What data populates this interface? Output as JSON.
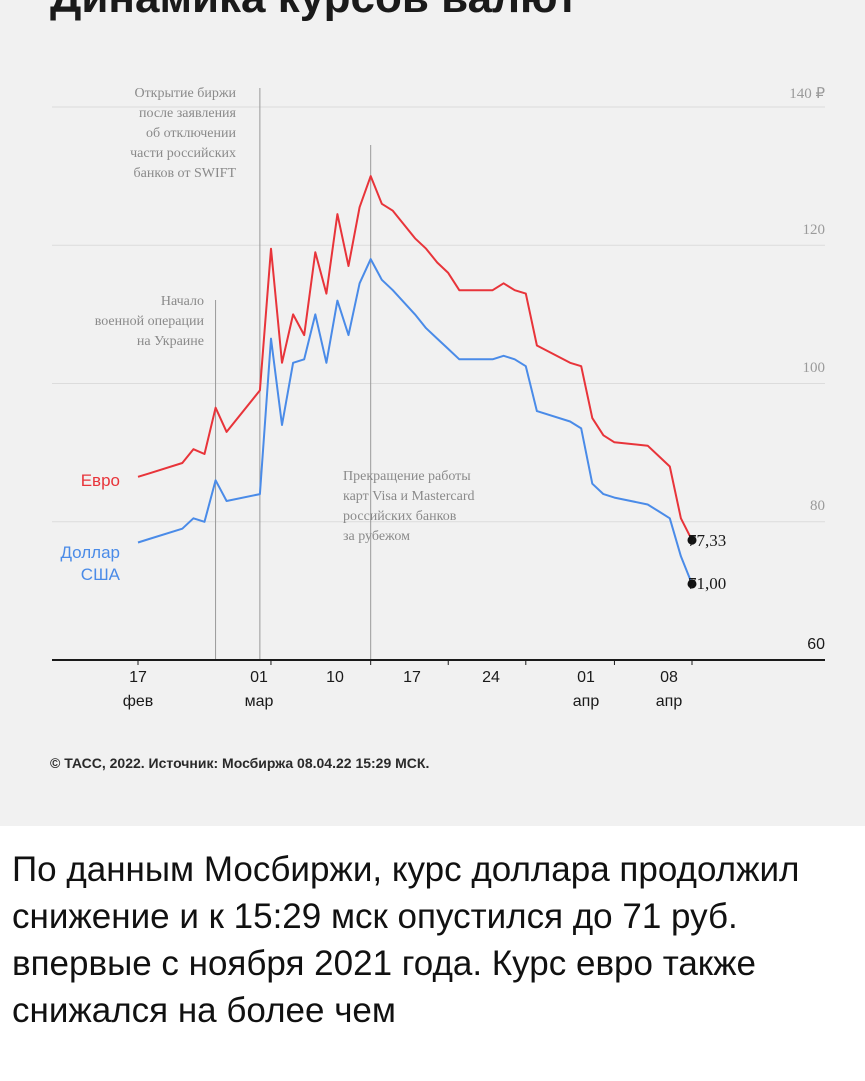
{
  "chart_data": {
    "type": "line",
    "title": "Динамика курсов валют",
    "currency_note": "₽",
    "y_ticks": [
      {
        "value": 140,
        "label": "140 ₽"
      },
      {
        "value": 120,
        "label": "120"
      },
      {
        "value": 100,
        "label": "100"
      },
      {
        "value": 80,
        "label": "80"
      },
      {
        "value": 60,
        "label": "60"
      }
    ],
    "ylim": [
      60,
      140
    ],
    "x_ticks": [
      {
        "date": "2022-02-17",
        "label": "17\nфев"
      },
      {
        "date": "2022-03-01",
        "label": "01\nмар"
      },
      {
        "date": "2022-03-10",
        "label": "10"
      },
      {
        "date": "2022-03-17",
        "label": "17"
      },
      {
        "date": "2022-03-24",
        "label": "24"
      },
      {
        "date": "2022-04-01",
        "label": "01\nапр"
      },
      {
        "date": "2022-04-08",
        "label": "08\nапр"
      }
    ],
    "series": [
      {
        "name": "Евро",
        "color": "#e8343a",
        "end_label": "77,33",
        "points": [
          [
            "2022-02-17",
            86.5
          ],
          [
            "2022-02-18",
            87.0
          ],
          [
            "2022-02-21",
            88.5
          ],
          [
            "2022-02-22",
            90.5
          ],
          [
            "2022-02-23",
            89.8
          ],
          [
            "2022-02-24",
            96.5
          ],
          [
            "2022-02-25",
            93.0
          ],
          [
            "2022-02-28",
            99.0
          ],
          [
            "2022-03-01",
            119.5
          ],
          [
            "2022-03-02",
            103.0
          ],
          [
            "2022-03-03",
            110.0
          ],
          [
            "2022-03-04",
            107.0
          ],
          [
            "2022-03-05",
            119.0
          ],
          [
            "2022-03-06",
            113.0
          ],
          [
            "2022-03-07",
            124.5
          ],
          [
            "2022-03-08",
            117.0
          ],
          [
            "2022-03-09",
            125.5
          ],
          [
            "2022-03-10",
            130.0
          ],
          [
            "2022-03-11",
            126.0
          ],
          [
            "2022-03-12",
            125.0
          ],
          [
            "2022-03-14",
            121.0
          ],
          [
            "2022-03-15",
            119.5
          ],
          [
            "2022-03-16",
            117.5
          ],
          [
            "2022-03-17",
            116.0
          ],
          [
            "2022-03-18",
            113.5
          ],
          [
            "2022-03-21",
            113.5
          ],
          [
            "2022-03-22",
            114.5
          ],
          [
            "2022-03-23",
            113.5
          ],
          [
            "2022-03-24",
            113.0
          ],
          [
            "2022-03-25",
            105.5
          ],
          [
            "2022-03-28",
            103.0
          ],
          [
            "2022-03-29",
            102.5
          ],
          [
            "2022-03-30",
            95.0
          ],
          [
            "2022-03-31",
            92.5
          ],
          [
            "2022-04-01",
            91.5
          ],
          [
            "2022-04-04",
            91.0
          ],
          [
            "2022-04-05",
            89.5
          ],
          [
            "2022-04-06",
            88.0
          ],
          [
            "2022-04-07",
            80.5
          ],
          [
            "2022-04-08",
            77.33
          ]
        ]
      },
      {
        "name": "Доллар\nСША",
        "color": "#4a8be8",
        "end_label": "71,00",
        "points": [
          [
            "2022-02-17",
            77.0
          ],
          [
            "2022-02-18",
            77.5
          ],
          [
            "2022-02-21",
            79.0
          ],
          [
            "2022-02-22",
            80.5
          ],
          [
            "2022-02-23",
            80.0
          ],
          [
            "2022-02-24",
            86.0
          ],
          [
            "2022-02-25",
            83.0
          ],
          [
            "2022-02-28",
            84.0
          ],
          [
            "2022-03-01",
            106.5
          ],
          [
            "2022-03-02",
            94.0
          ],
          [
            "2022-03-03",
            103.0
          ],
          [
            "2022-03-04",
            103.5
          ],
          [
            "2022-03-05",
            110.0
          ],
          [
            "2022-03-06",
            103.0
          ],
          [
            "2022-03-07",
            112.0
          ],
          [
            "2022-03-08",
            107.0
          ],
          [
            "2022-03-09",
            114.5
          ],
          [
            "2022-03-10",
            118.0
          ],
          [
            "2022-03-11",
            115.0
          ],
          [
            "2022-03-12",
            113.5
          ],
          [
            "2022-03-14",
            110.0
          ],
          [
            "2022-03-15",
            108.0
          ],
          [
            "2022-03-16",
            106.5
          ],
          [
            "2022-03-17",
            105.0
          ],
          [
            "2022-03-18",
            103.5
          ],
          [
            "2022-03-21",
            103.5
          ],
          [
            "2022-03-22",
            104.0
          ],
          [
            "2022-03-23",
            103.5
          ],
          [
            "2022-03-24",
            102.5
          ],
          [
            "2022-03-25",
            96.0
          ],
          [
            "2022-03-28",
            94.5
          ],
          [
            "2022-03-29",
            93.5
          ],
          [
            "2022-03-30",
            85.5
          ],
          [
            "2022-03-31",
            84.0
          ],
          [
            "2022-04-01",
            83.5
          ],
          [
            "2022-04-04",
            82.5
          ],
          [
            "2022-04-05",
            81.5
          ],
          [
            "2022-04-06",
            80.5
          ],
          [
            "2022-04-07",
            75.0
          ],
          [
            "2022-04-08",
            71.0
          ]
        ]
      }
    ],
    "annotations": [
      {
        "date": "2022-02-24",
        "text": "Начало\nвоенной операции\nна Украине"
      },
      {
        "date": "2022-02-28",
        "text": "Открытие биржи\nпосле заявления\nоб отключении\nчасти российских\nбанков от SWIFT"
      },
      {
        "date": "2022-03-10",
        "text": "Прекращение работы\nкарт Visa и Mastercard\nроссийских банков\nза рубежом"
      }
    ],
    "credit": "© ТАСС, 2022. Источник: Мосбиржа 08.04.22 15:29 МСК.",
    "grid": true
  },
  "article": {
    "text": "По данным Мосбиржи, курс доллара продолжил снижение и к 15:29 мск опустился до 71 руб. впервые с ноября 2021 года. Курс евро также снижался на более чем"
  }
}
